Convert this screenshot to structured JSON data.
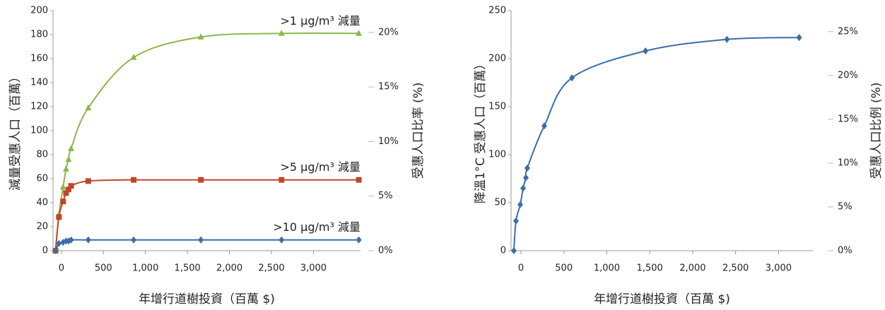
{
  "chart_data": [
    {
      "type": "line",
      "y_label": "減量受惠人口（百萬）",
      "y2_label": "受惠人口比率 (%)",
      "x_label": "年增行道樹投資（百萬 $)",
      "x": [
        -70,
        -30,
        20,
        55,
        85,
        115,
        320,
        860,
        1660,
        2620,
        3540
      ],
      "xlim": [
        -100,
        3560
      ],
      "xticks": [
        0,
        500,
        {
          "value": 1000,
          "label": "1,000"
        },
        {
          "value": 1500,
          "label": "1,500"
        },
        {
          "value": 2000,
          "label": "2,000"
        },
        {
          "value": 2500,
          "label": "2,500"
        },
        {
          "value": 3000,
          "label": "3,000"
        }
      ],
      "ylim": [
        0,
        200
      ],
      "yticks": [
        0,
        20,
        40,
        60,
        80,
        100,
        120,
        140,
        160,
        180,
        200
      ],
      "y2lim": [
        0,
        22
      ],
      "y2ticks": [
        {
          "value": 0,
          "label": "0%"
        },
        {
          "value": 5,
          "label": "5%"
        },
        {
          "value": 10,
          "label": "10%"
        },
        {
          "value": 15,
          "label": "15%"
        },
        {
          "value": 20,
          "label": "20%"
        }
      ],
      "series": [
        {
          "name": ">1 μg/m³ 減量",
          "color": "#8cb84a",
          "marker": "triangle",
          "values": [
            0,
            30,
            53,
            68,
            76,
            85,
            119,
            161,
            178,
            181,
            181
          ]
        },
        {
          "name": ">5 μg/m³ 減量",
          "color": "#c0462a",
          "marker": "square",
          "values": [
            0,
            28,
            41,
            48,
            51,
            54,
            58,
            59,
            59,
            59,
            59
          ]
        },
        {
          "name": ">10 μg/m³ 減量",
          "color": "#3a6ea8",
          "marker": "diamond",
          "values": [
            0,
            6,
            7,
            8,
            8,
            9,
            9,
            9,
            9,
            9,
            9
          ]
        }
      ]
    },
    {
      "type": "line",
      "y_label": "降溫1°C 受惠人口（百萬）",
      "y2_label": "受惠人口比例 (%)",
      "x_label": "年增行道樹投資（百萬 $)",
      "x": [
        -82,
        -58,
        -8,
        25,
        58,
        74,
        272,
        594,
        1451,
        2399,
        3240
      ],
      "xlim": [
        -115,
        3400
      ],
      "xticks": [
        0,
        500,
        {
          "value": 1000,
          "label": "1,000"
        },
        {
          "value": 1500,
          "label": "1,500"
        },
        {
          "value": 2000,
          "label": "2,000"
        },
        {
          "value": 2500,
          "label": "2,500"
        },
        {
          "value": 3000,
          "label": "3,000"
        }
      ],
      "ylim": [
        0,
        250
      ],
      "yticks": [
        0,
        50,
        100,
        150,
        200,
        250
      ],
      "y2lim": [
        0,
        27.4
      ],
      "y2ticks": [
        {
          "value": 0,
          "label": "0%"
        },
        {
          "value": 5,
          "label": "5%"
        },
        {
          "value": 10,
          "label": "10%"
        },
        {
          "value": 15,
          "label": "15%"
        },
        {
          "value": 20,
          "label": "20%"
        },
        {
          "value": 25,
          "label": "25%"
        }
      ],
      "series": [
        {
          "color": "#3a6ea8",
          "marker": "diamond",
          "values": [
            0,
            31,
            48,
            65,
            76,
            86,
            130,
            180,
            208,
            220,
            222
          ]
        }
      ]
    }
  ]
}
